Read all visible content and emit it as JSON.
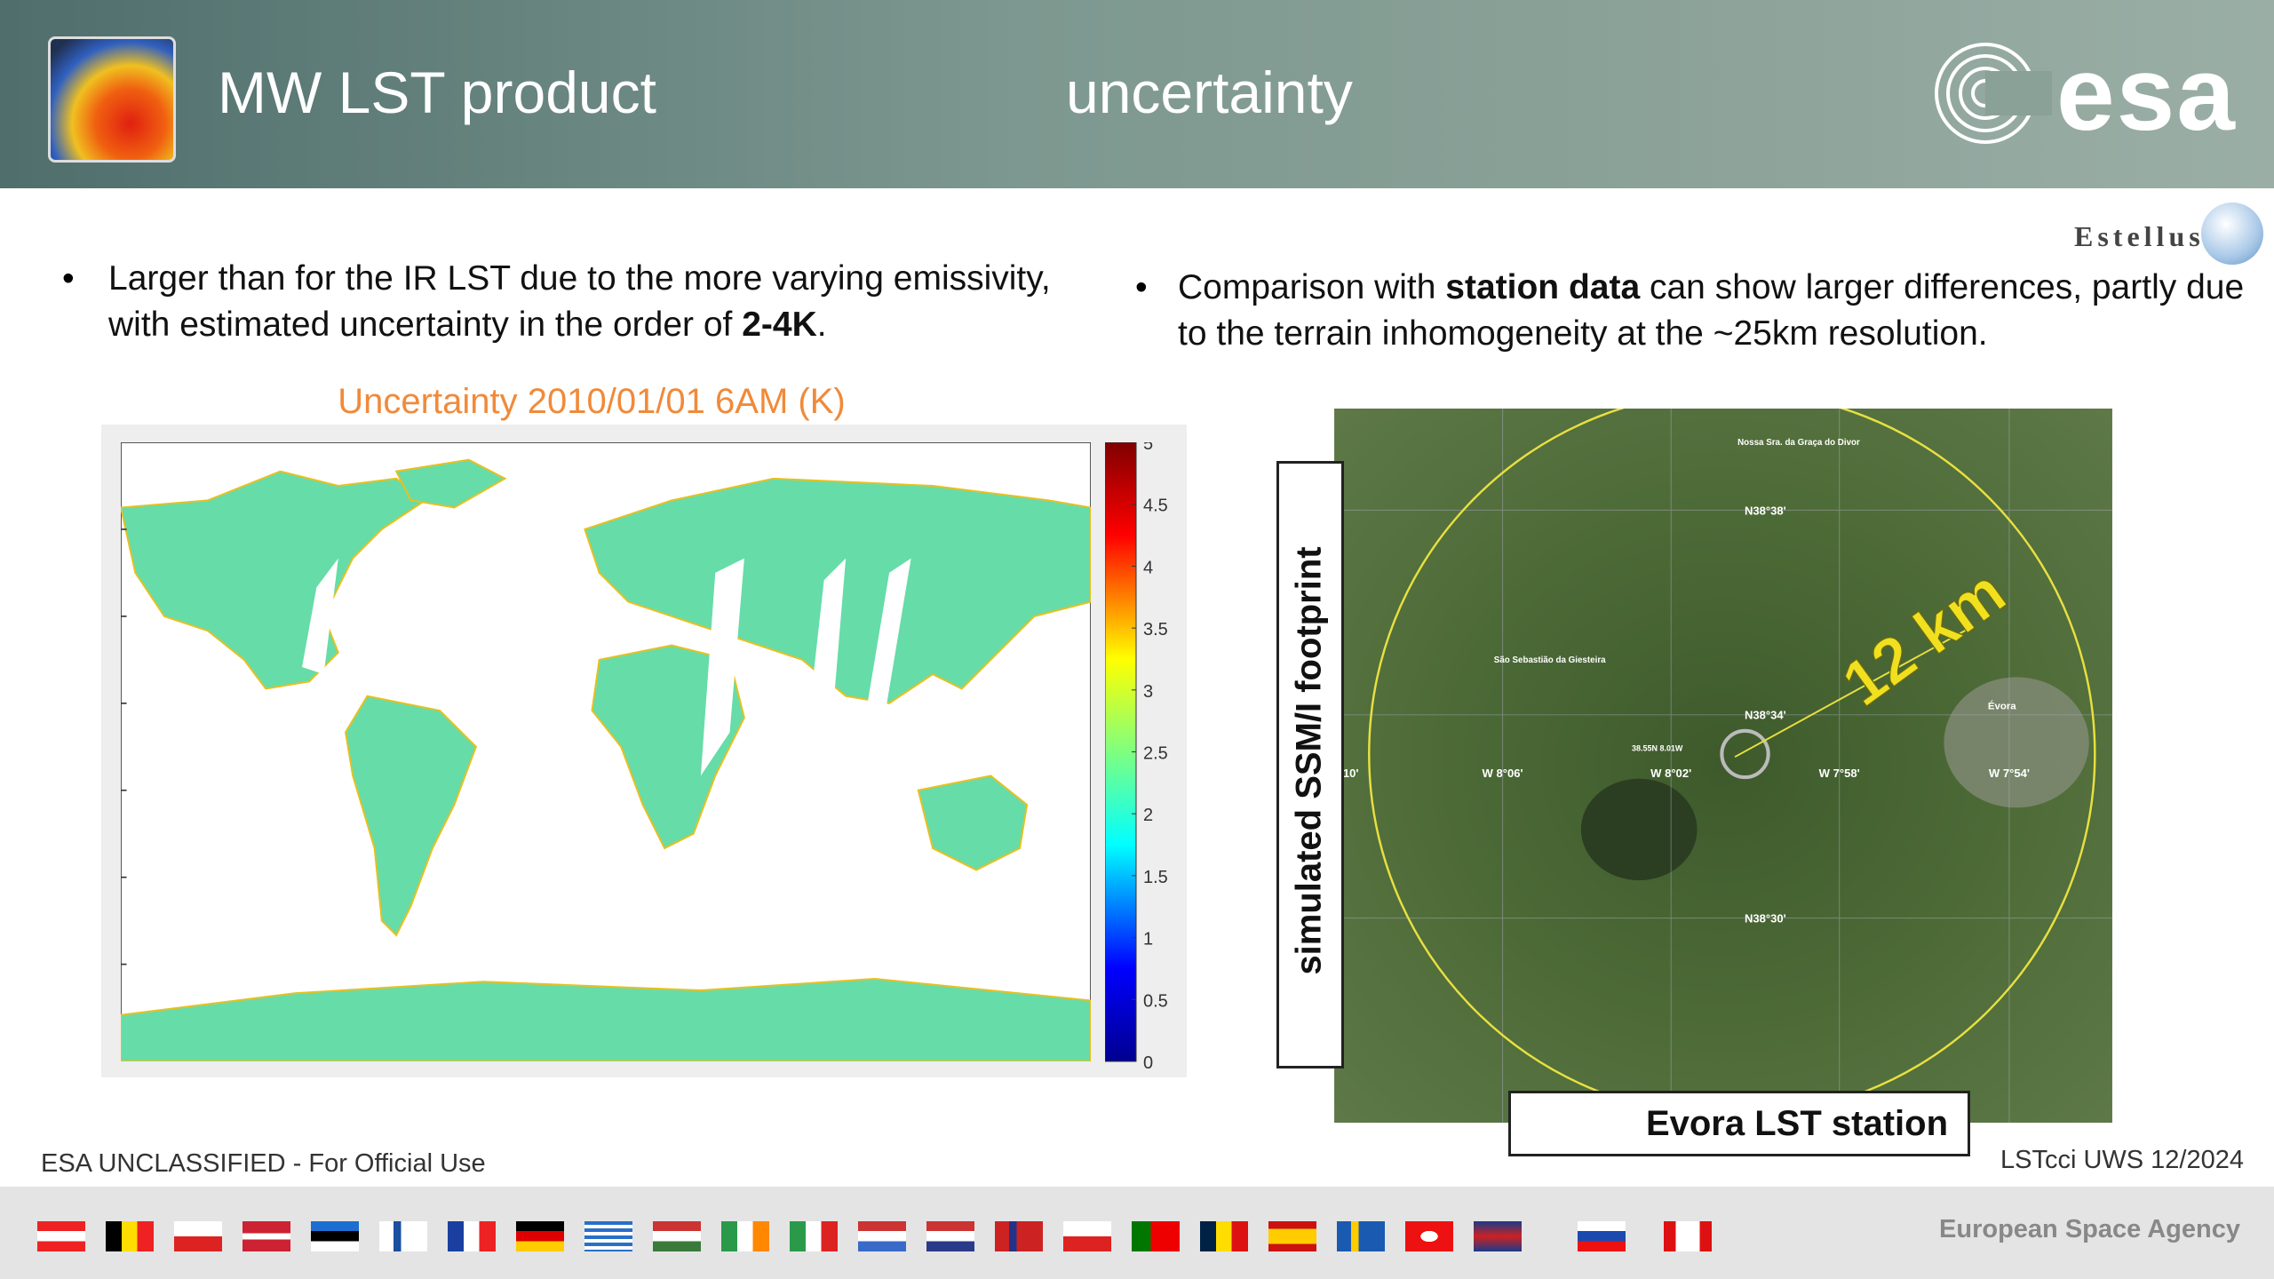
{
  "header": {
    "title": "MW LST product",
    "subtitle": "uncertainty",
    "logo": "esa",
    "partner": "Estellus"
  },
  "bullets": [
    {
      "pre": "Larger than for the IR LST due to the more varying emissivity, with estimated uncertainty in the order of ",
      "bold": "2-4K",
      "post": "."
    },
    {
      "pre": "Comparison with ",
      "bold": "station data",
      "post": " can show larger differences, partly due to the terrain inhomogeneity at the ~25km resolution."
    }
  ],
  "figure": {
    "title": "Uncertainty 2010/01/01 6AM (K)",
    "colorbar_ticks": [
      "0",
      "0.5",
      "1",
      "1.5",
      "2",
      "2.5",
      "3",
      "3.5",
      "4",
      "4.5",
      "5"
    ]
  },
  "map": {
    "labels": [
      "Nossa Sra. da Graça do Divor",
      "N38°38'",
      "São Sebastião da Giesteira",
      "N38°34'",
      "38.55N 8.01W",
      "10'",
      "W 8°06'",
      "W 8°02'",
      "W 7°58'",
      "W 7°54'",
      "N38°30'",
      "Évora"
    ],
    "distance": "12 km",
    "footprint": "simulated SSM/I footprint",
    "station": "Evora LST station"
  },
  "footer": {
    "classification": "ESA UNCLASSIFIED - For Official Use",
    "event": "LSTcci UWS 12/2024",
    "agency": "European Space Agency"
  }
}
